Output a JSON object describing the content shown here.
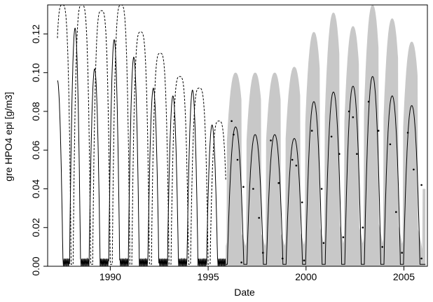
{
  "chart_data": {
    "type": "line",
    "title": "",
    "xlabel": "Date",
    "ylabel": "gre HPO4 epi [g/m3]",
    "xlim": [
      1986.8,
      2006.2
    ],
    "ylim": [
      0.0,
      0.135
    ],
    "x_ticks": [
      1990,
      1995,
      2000,
      2005
    ],
    "x_tick_labels": [
      "1990",
      "1995",
      "2000",
      "2005"
    ],
    "y_ticks": [
      0.0,
      0.02,
      0.04,
      0.06,
      0.08,
      0.1,
      0.12
    ],
    "y_tick_labels": [
      "0.00",
      "0.02",
      "0.04",
      "0.06",
      "0.08",
      "0.10",
      "0.12"
    ],
    "grid": false,
    "legend": "none",
    "colors": {
      "band": "#c8c8c8",
      "line": "#000000",
      "dashed": "#000000",
      "points": "#000000"
    },
    "series": [
      {
        "kind": "dashed-envelope",
        "period": [
          1987.3,
          1995.9
        ],
        "peaks": [
          {
            "x": 1987.55,
            "y": 0.135
          },
          {
            "x": 1988.55,
            "y": 0.135
          },
          {
            "x": 1989.55,
            "y": 0.132
          },
          {
            "x": 1990.55,
            "y": 0.135
          },
          {
            "x": 1991.55,
            "y": 0.121
          },
          {
            "x": 1992.55,
            "y": 0.11
          },
          {
            "x": 1993.55,
            "y": 0.098
          },
          {
            "x": 1994.55,
            "y": 0.092
          },
          {
            "x": 1995.55,
            "y": 0.075
          }
        ]
      },
      {
        "kind": "observed-line",
        "period": [
          1987.3,
          1995.9
        ],
        "peaks": [
          {
            "x": 1987.3,
            "y": 0.096
          },
          {
            "x": 1988.2,
            "y": 0.123
          },
          {
            "x": 1989.2,
            "y": 0.102
          },
          {
            "x": 1990.2,
            "y": 0.117
          },
          {
            "x": 1991.2,
            "y": 0.108
          },
          {
            "x": 1992.2,
            "y": 0.092
          },
          {
            "x": 1993.2,
            "y": 0.088
          },
          {
            "x": 1994.2,
            "y": 0.091
          },
          {
            "x": 1995.2,
            "y": 0.073
          }
        ]
      },
      {
        "kind": "band-upper",
        "period": [
          1995.9,
          2006.1
        ],
        "peaks": [
          {
            "x": 1996.4,
            "y": 0.1
          },
          {
            "x": 1997.4,
            "y": 0.1
          },
          {
            "x": 1998.4,
            "y": 0.1
          },
          {
            "x": 1999.4,
            "y": 0.103
          },
          {
            "x": 2000.4,
            "y": 0.121
          },
          {
            "x": 2001.4,
            "y": 0.131
          },
          {
            "x": 2002.4,
            "y": 0.124
          },
          {
            "x": 2003.4,
            "y": 0.135
          },
          {
            "x": 2004.4,
            "y": 0.128
          },
          {
            "x": 2005.4,
            "y": 0.116
          }
        ],
        "valley": 0.04
      },
      {
        "kind": "model-median",
        "period": [
          1995.9,
          2006.1
        ],
        "peaks": [
          {
            "x": 1996.4,
            "y": 0.072
          },
          {
            "x": 1997.4,
            "y": 0.068
          },
          {
            "x": 1998.4,
            "y": 0.068
          },
          {
            "x": 1999.4,
            "y": 0.066
          },
          {
            "x": 2000.4,
            "y": 0.085
          },
          {
            "x": 2001.4,
            "y": 0.09
          },
          {
            "x": 2002.4,
            "y": 0.093
          },
          {
            "x": 2003.4,
            "y": 0.098
          },
          {
            "x": 2004.4,
            "y": 0.088
          },
          {
            "x": 2005.4,
            "y": 0.083
          }
        ]
      },
      {
        "kind": "observation-points",
        "points": [
          {
            "x": 1996.2,
            "y": 0.075
          },
          {
            "x": 1996.3,
            "y": 0.068
          },
          {
            "x": 1996.5,
            "y": 0.055
          },
          {
            "x": 1996.8,
            "y": 0.041
          },
          {
            "x": 1997.3,
            "y": 0.04
          },
          {
            "x": 1997.6,
            "y": 0.025
          },
          {
            "x": 1998.2,
            "y": 0.065
          },
          {
            "x": 1998.6,
            "y": 0.043
          },
          {
            "x": 1999.3,
            "y": 0.055
          },
          {
            "x": 1999.5,
            "y": 0.052
          },
          {
            "x": 1999.8,
            "y": 0.033
          },
          {
            "x": 2000.3,
            "y": 0.07
          },
          {
            "x": 2000.8,
            "y": 0.04
          },
          {
            "x": 2001.3,
            "y": 0.067
          },
          {
            "x": 2001.7,
            "y": 0.058
          },
          {
            "x": 2002.2,
            "y": 0.08
          },
          {
            "x": 2002.4,
            "y": 0.077
          },
          {
            "x": 2002.6,
            "y": 0.058
          },
          {
            "x": 2003.2,
            "y": 0.085
          },
          {
            "x": 2003.7,
            "y": 0.07
          },
          {
            "x": 2004.3,
            "y": 0.063
          },
          {
            "x": 2004.6,
            "y": 0.028
          },
          {
            "x": 2005.2,
            "y": 0.069
          },
          {
            "x": 2005.5,
            "y": 0.05
          },
          {
            "x": 2005.9,
            "y": 0.042
          },
          {
            "x": 1996.7,
            "y": 0.002
          },
          {
            "x": 1997.8,
            "y": 0.007
          },
          {
            "x": 1998.8,
            "y": 0.004
          },
          {
            "x": 1999.9,
            "y": 0.003
          },
          {
            "x": 2000.9,
            "y": 0.012
          },
          {
            "x": 2001.9,
            "y": 0.015
          },
          {
            "x": 2002.9,
            "y": 0.02
          },
          {
            "x": 2003.9,
            "y": 0.01
          },
          {
            "x": 2004.9,
            "y": 0.007
          },
          {
            "x": 2005.9,
            "y": 0.004
          }
        ]
      }
    ]
  }
}
